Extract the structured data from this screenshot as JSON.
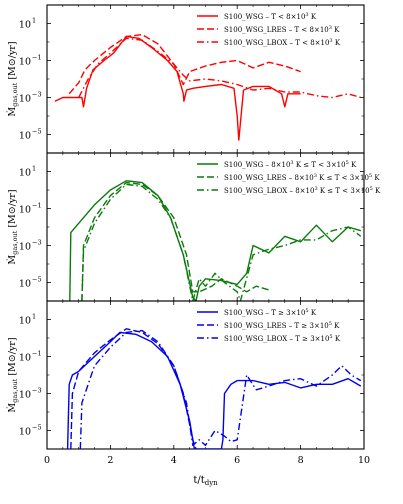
{
  "chart_data": {
    "type": "line",
    "shared_x": {
      "label": "t/t_dyn",
      "label_main": "t/t",
      "label_sub": "dyn",
      "range": [
        0,
        10
      ],
      "ticks": [
        0,
        2,
        4,
        6,
        8,
        10
      ]
    },
    "y_label_main": "Ṁ",
    "y_label_sub": "gas,out",
    "y_label_unit": "[M⊙/yr]",
    "y_scale": "log",
    "y_range_exp": [
      -6,
      2
    ],
    "y_ticks": [
      {
        "exp": 1,
        "label": "10"
      },
      {
        "exp": -1,
        "label": "10"
      },
      {
        "exp": -3,
        "label": "10"
      },
      {
        "exp": -5,
        "label": "10"
      }
    ],
    "y_tick_sups": [
      "1",
      "−1",
      "−3",
      "−5"
    ],
    "panels": [
      {
        "color": "#ff0000",
        "series": [
          {
            "name": "S100_WSG – T < 8×10³ K",
            "style": "solid",
            "x": [
              0.25,
              0.5,
              0.7,
              1.1,
              1.15,
              1.25,
              1.45,
              1.8,
              2.1,
              2.5,
              2.9,
              3.3,
              3.8,
              4.1,
              4.3,
              4.32,
              4.4,
              4.6,
              5.0,
              5.5,
              5.9,
              6.0,
              6.05,
              6.2,
              6.5,
              7.0,
              7.4,
              7.5,
              7.6,
              8.0
            ],
            "y": [
              -3.2,
              -3.0,
              -3.0,
              -3.0,
              -3.5,
              -2.5,
              -1.5,
              -1.0,
              -0.6,
              0.3,
              0.2,
              -0.3,
              -1.0,
              -1.6,
              -2.8,
              -3.2,
              -2.6,
              -2.5,
              -2.4,
              -2.3,
              -2.5,
              -4.0,
              -5.3,
              -2.6,
              -2.4,
              -2.4,
              -2.8,
              -3.5,
              -2.8,
              -2.8
            ]
          },
          {
            "name": "S100_WSG_LRES – T < 8×10³ K",
            "style": "dashed",
            "x": [
              0.7,
              1.0,
              1.2,
              1.5,
              2.0,
              2.5,
              3.0,
              3.5,
              4.0,
              4.3,
              4.5,
              5.0,
              5.5,
              6.0,
              6.5,
              7.0,
              7.5,
              8.0
            ],
            "y": [
              -2.8,
              -2.2,
              -1.5,
              -1.0,
              -0.3,
              0.3,
              0.4,
              -0.1,
              -1.2,
              -2.3,
              -1.6,
              -1.3,
              -1.1,
              -1.0,
              -1.4,
              -1.1,
              -1.3,
              -1.6
            ]
          },
          {
            "name": "S100_WSG_LBOX – T < 8×10³ K",
            "style": "dashdot",
            "x": [
              1.0,
              1.3,
              1.6,
              2.0,
              2.5,
              3.0,
              3.5,
              4.0,
              4.3,
              4.5,
              5.0,
              5.5,
              6.0,
              6.5,
              7.0,
              7.5,
              8.0,
              8.5,
              9.0,
              9.5,
              9.9
            ],
            "y": [
              -3.0,
              -2.0,
              -1.2,
              -0.6,
              0.2,
              0.1,
              -0.5,
              -1.2,
              -1.8,
              -2.1,
              -2.0,
              -2.1,
              -2.3,
              -2.6,
              -2.5,
              -2.7,
              -2.7,
              -2.9,
              -3.0,
              -2.8,
              -3.0
            ]
          }
        ],
        "legend": [
          {
            "main": "S100_WSG – T < 8×10",
            "sup": "3",
            "tail": " K"
          },
          {
            "main": "S100_WSG_LRES – T < 8×10",
            "sup": "3",
            "tail": " K"
          },
          {
            "main": "S100_WSG_LBOX – T < 8×10",
            "sup": "3",
            "tail": " K"
          }
        ]
      },
      {
        "color": "#0a7a0a",
        "series": [
          {
            "name": "S100_WSG – 8×10³ K ≤ T < 3×10⁵ K",
            "style": "solid",
            "x": [
              0.72,
              0.75,
              1.0,
              1.5,
              2.0,
              2.5,
              3.0,
              3.5,
              3.9,
              4.3,
              4.6,
              4.7,
              4.8,
              5.0,
              5.5,
              6.0,
              6.3,
              6.5,
              7.0,
              7.5,
              8.0,
              8.5,
              9.0,
              9.5,
              9.9
            ],
            "y": [
              -6.3,
              -2.3,
              -1.8,
              -0.8,
              0.0,
              0.5,
              0.4,
              -0.3,
              -1.5,
              -3.5,
              -5.8,
              -6.3,
              -5.2,
              -4.8,
              -4.9,
              -5.1,
              -4.5,
              -3.0,
              -3.4,
              -2.5,
              -2.8,
              -1.9,
              -2.8,
              -2.0,
              -2.2
            ]
          },
          {
            "name": "S100_WSG_LRES – 8×10³ K ≤ T < 3×10⁵ K",
            "style": "dashed",
            "x": [
              1.1,
              1.15,
              1.5,
              2.0,
              2.5,
              3.0,
              3.5,
              4.0,
              4.4,
              4.6,
              4.8,
              5.2,
              5.5,
              6.0,
              6.3,
              6.6,
              7.0
            ],
            "y": [
              -6.3,
              -3.0,
              -1.5,
              -0.3,
              0.4,
              0.3,
              -0.3,
              -1.5,
              -3.5,
              -5.5,
              -5.5,
              -5.2,
              -4.8,
              -5.2,
              -5.5,
              -5.2,
              -5.4
            ]
          },
          {
            "name": "S100_WSG_LBOX – 8×10³ K ≤ T < 3×10⁵ K",
            "style": "dashdot",
            "x": [
              1.1,
              1.15,
              1.5,
              2.0,
              2.5,
              3.0,
              3.5,
              3.9,
              4.3,
              4.6,
              4.8,
              5.0,
              5.3,
              5.6,
              6.0,
              6.1,
              6.5,
              7.0,
              7.5,
              8.0,
              8.5,
              9.0,
              9.5,
              9.9
            ],
            "y": [
              -6.3,
              -3.3,
              -1.8,
              -0.5,
              0.3,
              0.2,
              -0.5,
              -1.5,
              -3.5,
              -6.3,
              -4.8,
              -5.2,
              -4.5,
              -5.0,
              -5.5,
              -6.3,
              -3.5,
              -3.2,
              -3.0,
              -2.7,
              -2.7,
              -2.2,
              -2.0,
              -2.5
            ]
          }
        ],
        "legend": [
          {
            "main": "S100_WSG – 8×10",
            "sup": "3",
            "tail": " K ≤ T < 3×10",
            "sup2": "5",
            "tail2": " K"
          },
          {
            "main": "S100_WSG_LRES – 8×10",
            "sup": "3",
            "tail": " K ≤ T < 3×10",
            "sup2": "5",
            "tail2": " K"
          },
          {
            "main": "S100_WSG_LBOX – 8×10",
            "sup": "3",
            "tail": " K ≤ T < 3×10",
            "sup2": "5",
            "tail2": " K"
          }
        ]
      },
      {
        "color": "#0000ee",
        "series": [
          {
            "name": "S100_WSG – T ≥ 3×10⁵ K",
            "style": "solid",
            "x": [
              0.65,
              0.7,
              0.8,
              1.0,
              1.5,
              2.0,
              2.3,
              2.8,
              3.3,
              3.8,
              4.2,
              4.5,
              4.6,
              4.65,
              5.5,
              5.55,
              5.6,
              5.8,
              6.0,
              6.5,
              7.0,
              7.5,
              8.0,
              8.5,
              9.0,
              9.5,
              9.9
            ],
            "y": [
              -6.3,
              -2.5,
              -2.0,
              -1.8,
              -1.0,
              -0.2,
              0.3,
              0.2,
              -0.2,
              -1.0,
              -2.5,
              -4.5,
              -5.5,
              -6.3,
              -6.3,
              -5.5,
              -3.0,
              -2.5,
              -2.3,
              -2.3,
              -2.5,
              -2.4,
              -2.7,
              -2.5,
              -2.5,
              -2.2,
              -2.6
            ]
          },
          {
            "name": "S100_WSG_LRES – T ≥ 3×10⁵ K",
            "style": "dashed",
            "x": [
              0.75,
              0.8,
              1.0,
              1.5,
              2.0,
              2.5,
              3.0,
              3.5,
              4.0,
              4.3,
              4.6,
              4.7
            ],
            "y": [
              -6.3,
              -3.0,
              -1.8,
              -0.8,
              -0.1,
              0.5,
              0.3,
              -0.3,
              -1.5,
              -3.0,
              -5.5,
              -6.3
            ]
          },
          {
            "name": "S100_WSG_LBOX – T ≥ 3×10⁵ K",
            "style": "dashdot",
            "x": [
              1.05,
              1.1,
              1.5,
              2.0,
              2.5,
              3.0,
              3.5,
              4.0,
              4.4,
              4.6,
              4.8,
              5.0,
              5.3,
              5.6,
              5.8,
              6.0,
              6.3,
              6.6,
              7.0,
              7.5,
              8.0,
              8.5,
              9.0,
              9.3,
              9.6,
              9.9
            ],
            "y": [
              -6.3,
              -3.5,
              -1.5,
              -0.5,
              0.3,
              0.4,
              -0.2,
              -1.5,
              -3.5,
              -5.8,
              -5.5,
              -5.8,
              -5.0,
              -5.3,
              -5.6,
              -5.5,
              -2.0,
              -2.8,
              -2.6,
              -2.3,
              -2.2,
              -2.6,
              -2.0,
              -1.5,
              -2.0,
              -2.3
            ]
          }
        ],
        "legend": [
          {
            "main": "S100_WSG – T ≥ 3×10",
            "sup": "5",
            "tail": " K"
          },
          {
            "main": "S100_WSG_LRES – T ≥ 3×10",
            "sup": "5",
            "tail": " K"
          },
          {
            "main": "S100_WSG_LBOX – T ≥ 3×10",
            "sup": "5",
            "tail": " K"
          }
        ]
      }
    ]
  }
}
